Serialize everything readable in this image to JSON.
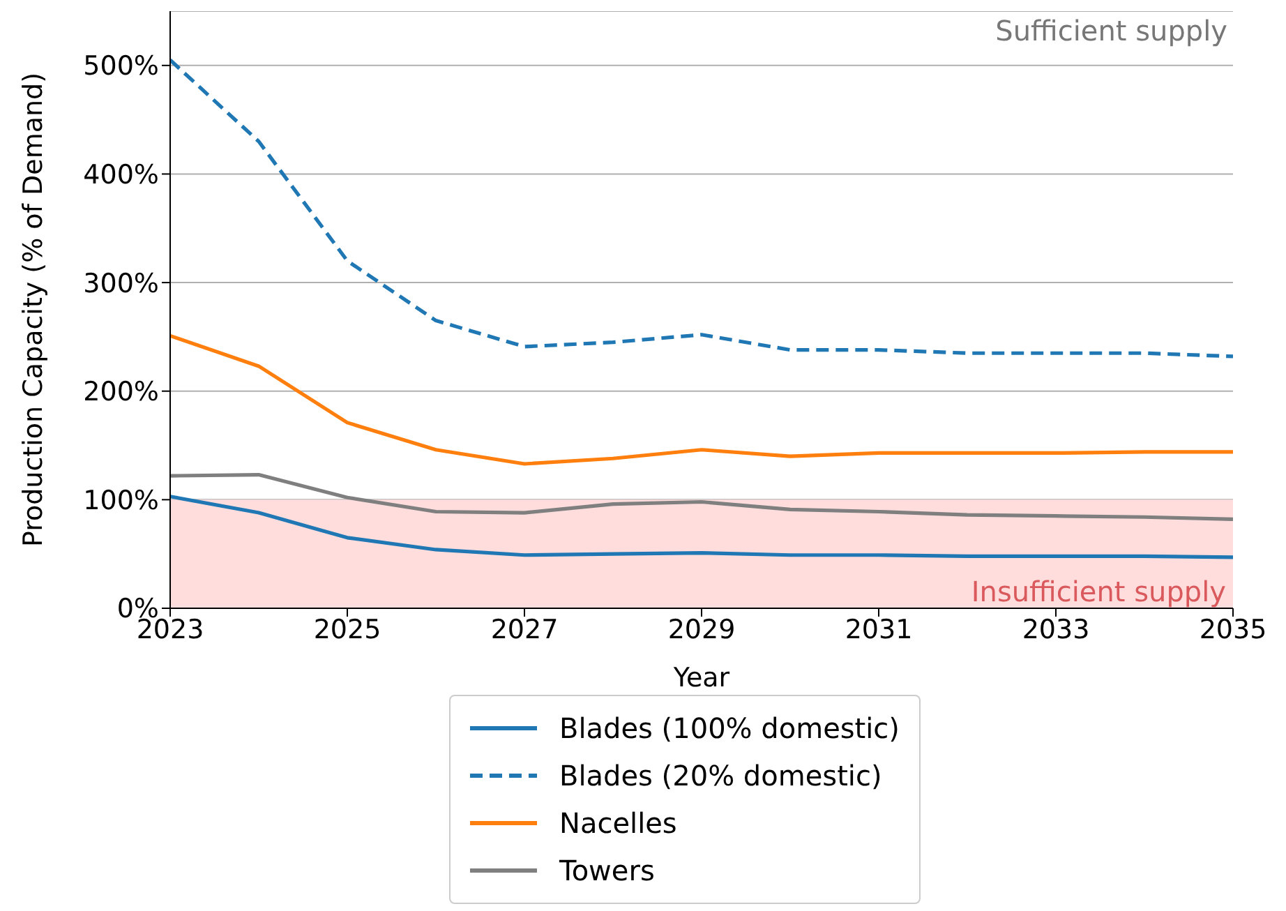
{
  "chart_data": {
    "type": "line",
    "xlabel": "Year",
    "ylabel": "Production Capacity (% of Demand)",
    "x": [
      2023,
      2024,
      2025,
      2026,
      2027,
      2028,
      2029,
      2030,
      2031,
      2032,
      2033,
      2034,
      2035
    ],
    "series": [
      {
        "name": "Blades (100% domestic)",
        "color": "#1f77b4",
        "line_style": "solid",
        "values": [
          103,
          88,
          65,
          54,
          49,
          50,
          51,
          49,
          49,
          48,
          48,
          48,
          47
        ]
      },
      {
        "name": "Blades (20% domestic)",
        "color": "#1f77b4",
        "line_style": "dashed",
        "values": [
          505,
          430,
          320,
          265,
          241,
          245,
          252,
          238,
          238,
          235,
          235,
          235,
          232
        ]
      },
      {
        "name": "Nacelles",
        "color": "#ff7f0e",
        "line_style": "solid",
        "values": [
          251,
          223,
          171,
          146,
          133,
          138,
          146,
          140,
          143,
          143,
          143,
          144,
          144
        ]
      },
      {
        "name": "Towers",
        "color": "#7f7f7f",
        "line_style": "solid",
        "values": [
          122,
          123,
          102,
          89,
          88,
          96,
          98,
          91,
          89,
          86,
          85,
          84,
          82
        ]
      }
    ],
    "xlim": [
      2023,
      2035
    ],
    "xticks": [
      2023,
      2025,
      2027,
      2029,
      2031,
      2033,
      2035
    ],
    "ylim": [
      0,
      550
    ],
    "yticks": [
      {
        "value": 0,
        "label": "0%"
      },
      {
        "value": 100,
        "label": "100%"
      },
      {
        "value": 200,
        "label": "200%"
      },
      {
        "value": 300,
        "label": "300%"
      },
      {
        "value": 400,
        "label": "400%"
      },
      {
        "value": 500,
        "label": "500%"
      }
    ],
    "bands": [
      {
        "axis": "y",
        "from": 0,
        "to": 100,
        "label": "Insufficient supply",
        "color": "#ffdddd"
      }
    ],
    "annotations": [
      "Sufficient supply"
    ],
    "grid": "y",
    "legend": "bottom",
    "marker": "none"
  }
}
